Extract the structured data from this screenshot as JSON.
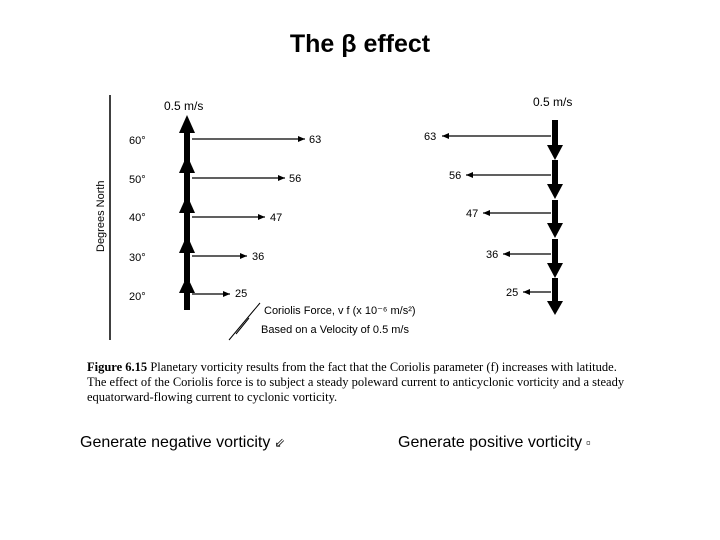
{
  "title": "The β effect",
  "figure": {
    "y_axis_label": "Degrees North",
    "left_speed_label": "0.5 m/s",
    "right_speed_label": "0.5 m/s",
    "latitudes": [
      "60°",
      "50°",
      "40°",
      "30°",
      "20°"
    ],
    "coriolis_values": [
      "63",
      "56",
      "47",
      "36",
      "25"
    ],
    "coriolis_force_label": "Coriolis Force,  v f (x 10⁻⁶ m/s²)",
    "velocity_note": "Based on a Velocity of 0.5 m/s"
  },
  "caption": {
    "label": "Figure 6.15",
    "text": "Planetary vorticity results from the fact that the Coriolis parameter (f) increases with latitude. The effect of the Coriolis force is to subject a steady poleward current to anticyclonic vorticity and a steady equatorward-flowing current to cyclonic vorticity."
  },
  "bottom": {
    "left_text": "Generate negative vorticity",
    "left_symbol": "⇙",
    "right_text": "Generate positive vorticity",
    "right_symbol": "▫"
  }
}
